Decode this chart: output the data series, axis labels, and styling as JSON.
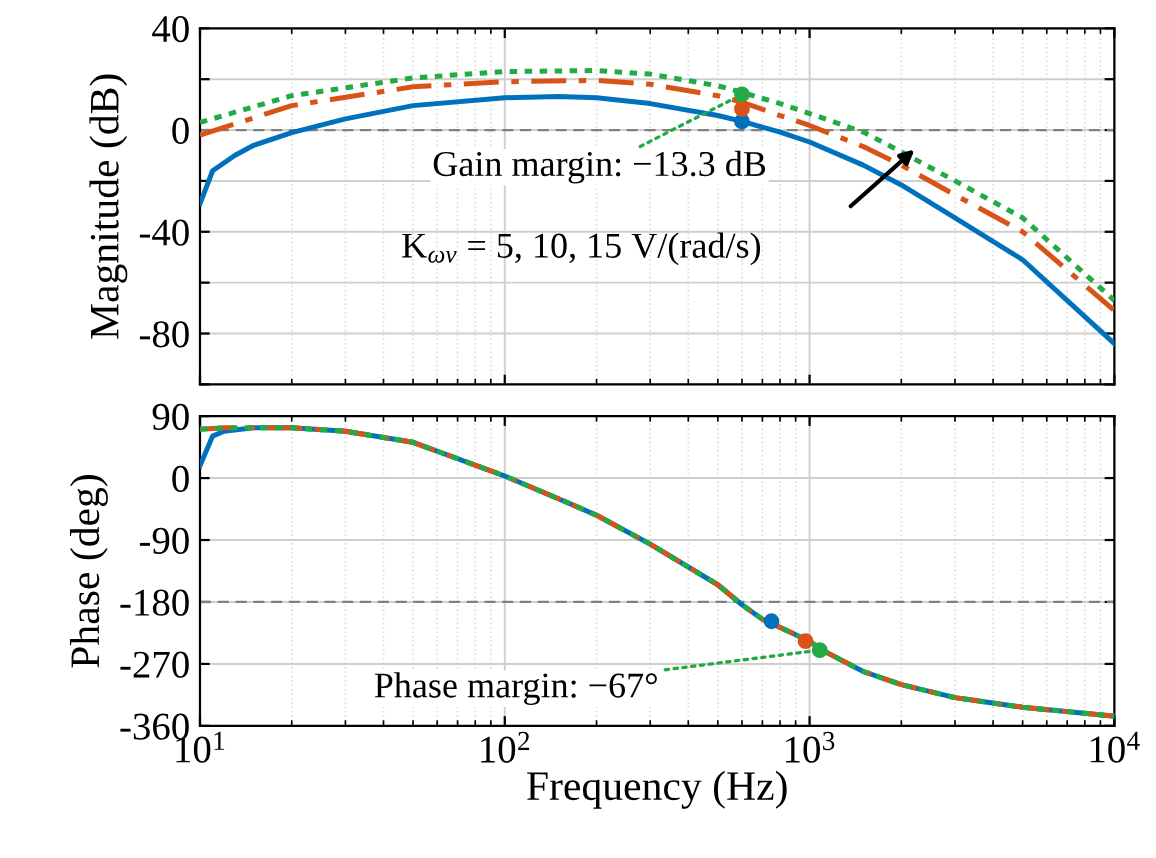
{
  "chart_data": [
    {
      "type": "line",
      "ylabel": "Magnitude (dB)",
      "log": "x",
      "grid": true,
      "tick_labels": "y",
      "x": [
        10,
        11,
        13,
        15,
        20,
        30,
        50,
        100,
        150,
        200,
        300,
        500,
        600,
        800,
        1000,
        1500,
        2000,
        3000,
        5000,
        10000
      ],
      "xlim": [
        10,
        10000
      ],
      "xticks": [
        {
          "value": 10,
          "label": null
        },
        {
          "value": 100,
          "label": null
        },
        {
          "value": 1000,
          "label": null
        },
        {
          "value": 10000,
          "label": null
        }
      ],
      "ylim": [
        -100,
        40
      ],
      "yticks": [
        {
          "value": -100,
          "label": null
        },
        -80,
        {
          "value": -60,
          "label": null
        },
        -40,
        {
          "value": -20,
          "label": null
        },
        0,
        {
          "value": 20,
          "label": null
        },
        40
      ],
      "series": [
        {
          "color": "#0072bd",
          "line_style": "solid",
          "values": [
            -29,
            -16,
            -10,
            -6,
            -1,
            4.4,
            9.6,
            12.7,
            13.2,
            12.7,
            10.4,
            5.7,
            3.4,
            -0.8,
            -4.7,
            -13.8,
            -21.6,
            -34.5,
            -51,
            -84
          ]
        },
        {
          "color": "#d95319",
          "line_style": "dashdot",
          "x": [
            10,
            20,
            50,
            100,
            200,
            300,
            500,
            600,
            800,
            1000,
            1500,
            2000,
            3000,
            5000,
            10000
          ],
          "values": [
            -2,
            9.6,
            17,
            19,
            19.5,
            18,
            13.5,
            11,
            5.7,
            1.8,
            -6.5,
            -13.8,
            -25.5,
            -40,
            -71
          ]
        },
        {
          "color": "#22aa44",
          "line_style": "dotted",
          "x": [
            10,
            20,
            50,
            100,
            200,
            300,
            500,
            600,
            800,
            1000,
            1500,
            2000,
            3000,
            5000,
            10000
          ],
          "values": [
            3,
            13.5,
            20.5,
            23,
            23.4,
            22,
            17.4,
            14.8,
            10.4,
            6.5,
            -0.8,
            -8.6,
            -20,
            -34.5,
            -67
          ]
        },
        {
          "type": "scatter",
          "marker": "circle",
          "color": "#0072bd",
          "x": [
            600
          ],
          "values": [
            3.4
          ]
        },
        {
          "type": "scatter",
          "marker": "circle",
          "color": "#d95319",
          "x": [
            600
          ],
          "values": [
            8.3
          ]
        },
        {
          "type": "scatter",
          "marker": "circle",
          "color": "#22aa44",
          "x": [
            600
          ],
          "values": [
            14
          ]
        }
      ],
      "ref_lines": [
        {
          "axis": "y",
          "value": 0,
          "color": "#808080",
          "line_style": "dashed"
        }
      ],
      "annotations": [
        {
          "text": "Gain margin: −13.3 dB",
          "x": 600,
          "y": 14
        },
        "K$_{ωv}$ = 5, 10, 15 V/(rad/s)"
      ]
    },
    {
      "type": "line",
      "ylabel": "Phase (deg)",
      "xlabel": "Frequency (Hz)",
      "log": "x",
      "grid": true,
      "x": [
        10,
        11,
        12,
        15,
        20,
        30,
        50,
        100,
        150,
        200,
        300,
        500,
        600,
        700,
        1000,
        1100,
        1500,
        2000,
        3000,
        5000,
        10000
      ],
      "xlim": [
        10,
        10000
      ],
      "xticks": [
        {
          "value": 10,
          "label": "10$^{1}$"
        },
        {
          "value": 100,
          "label": "10$^{2}$"
        },
        {
          "value": 1000,
          "label": "10$^{3}$"
        },
        {
          "value": 10000,
          "label": "10$^{4}$"
        }
      ],
      "ylim": [
        -360,
        90
      ],
      "yticks": [
        -360,
        -270,
        -180,
        -90,
        0,
        90
      ],
      "series": [
        {
          "color": "#0072bd",
          "line_style": "solid",
          "values": [
            18,
            61,
            68,
            73,
            73,
            68,
            52,
            3,
            -30,
            -54,
            -96,
            -155,
            -184,
            -205,
            -237,
            -250,
            -281,
            -300,
            -319,
            -333,
            -346
          ]
        },
        {
          "color": "#d95319",
          "line_style": "dashdot",
          "values": [
            71,
            72,
            73,
            73,
            73,
            68,
            52,
            3,
            -30,
            -54,
            -96,
            -155,
            -184,
            -205,
            -237,
            -250,
            -281,
            -300,
            -319,
            -333,
            -346
          ]
        },
        {
          "color": "#22aa44",
          "line_style": "dotted",
          "values": [
            71,
            72,
            73,
            73,
            73,
            68,
            52,
            3,
            -30,
            -54,
            -96,
            -155,
            -184,
            -205,
            -237,
            -250,
            -281,
            -300,
            -319,
            -333,
            -346
          ]
        },
        {
          "type": "scatter",
          "marker": "circle",
          "color": "#0072bd",
          "x": [
            750
          ],
          "values": [
            -208
          ]
        },
        {
          "type": "scatter",
          "marker": "circle",
          "color": "#d95319",
          "x": [
            970
          ],
          "values": [
            -237
          ]
        },
        {
          "type": "scatter",
          "marker": "circle",
          "color": "#22aa44",
          "x": [
            1080
          ],
          "values": [
            -250
          ]
        }
      ],
      "ref_lines": [
        {
          "axis": "y",
          "value": -180,
          "color": "#808080",
          "line_style": "dashed"
        }
      ],
      "annotations": [
        {
          "text": "Phase margin: −67°",
          "x": 1080,
          "y": -250
        }
      ]
    }
  ]
}
